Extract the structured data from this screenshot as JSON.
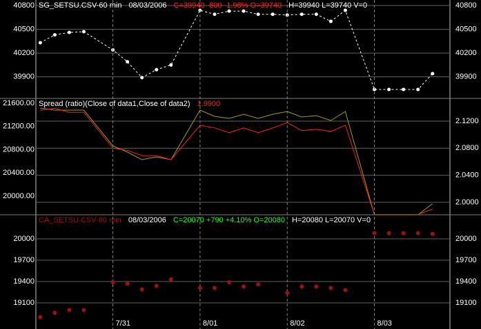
{
  "chart_data": [
    {
      "type": "line",
      "line_style": "dashed",
      "markers": true,
      "header": [
        {
          "text": "SG_SETSU.CSV-60 min",
          "color": "#ffffff"
        },
        {
          "text": "08/03/2006",
          "color": "#ffffff"
        },
        {
          "text": "C=39940  -800  -1.96%  O=39740",
          "color": "#ff2020"
        },
        {
          "text": "H=39940  L=39740  V=0",
          "color": "#ffffff"
        }
      ],
      "x": [
        0,
        1,
        2,
        3,
        5,
        6,
        7,
        8,
        9,
        11,
        12,
        13,
        14,
        15,
        16,
        17,
        18,
        19,
        20,
        21,
        23,
        24,
        25,
        26,
        27
      ],
      "xlim": [
        -0.3,
        28.2
      ],
      "series": [
        {
          "color": "#ffffff",
          "values": [
            40330,
            40430,
            40460,
            40470,
            40240,
            40090,
            39890,
            39990,
            40050,
            40740,
            40690,
            40730,
            40730,
            40690,
            40690,
            40680,
            40690,
            40690,
            40600,
            40740,
            39740,
            39740,
            39740,
            39740,
            39940
          ]
        }
      ],
      "ylim": [
        39627,
        40870
      ],
      "yticks": [
        39900,
        40200,
        40500,
        40800
      ],
      "grid": true
    },
    {
      "type": "line",
      "header": [
        {
          "text": "Spread (ratio)(Close of data1,Close of data2)",
          "color": "#ffffff"
        },
        {
          "text": "1.9900",
          "color": "#ff2020"
        }
      ],
      "x": [
        0,
        1,
        2,
        3,
        5,
        6,
        7,
        8,
        9,
        11,
        12,
        13,
        14,
        15,
        16,
        17,
        18,
        19,
        20,
        21,
        23,
        24,
        25,
        26,
        27
      ],
      "xlim": [
        -0.3,
        28.2
      ],
      "series": [
        {
          "color": "#a0a000",
          "values": [
            21517,
            21481,
            21481,
            21481,
            20865,
            20759,
            20628,
            20676,
            20628,
            21481,
            21375,
            21339,
            21410,
            21339,
            21410,
            21458,
            21363,
            21387,
            21304,
            21458,
            19680,
            19680,
            19680,
            19680,
            19870
          ]
        },
        {
          "color": "#ff2020",
          "axis": "y2",
          "values": [
            2.136,
            2.139,
            2.133,
            2.133,
            2.08,
            2.077,
            2.069,
            2.069,
            2.063,
            2.114,
            2.11,
            2.103,
            2.11,
            2.103,
            2.11,
            2.118,
            2.106,
            2.108,
            2.105,
            2.114,
            1.982,
            1.982,
            1.982,
            1.982,
            1.99
          ]
        }
      ],
      "ylim": [
        19680,
        21683
      ],
      "yticks": [
        {
          "value": 20000,
          "label": "20000.00"
        },
        {
          "value": 20400,
          "label": "20400.00"
        },
        {
          "value": 20800,
          "label": "20800.00"
        },
        {
          "value": 21200,
          "label": "21200.00"
        },
        {
          "value": 21600,
          "label": "21600.00"
        }
      ],
      "y2lim": [
        1.9816,
        2.1536
      ],
      "y2ticks": [
        {
          "value": 2.0,
          "label": "2.0000"
        },
        {
          "value": 2.04,
          "label": "2.0400"
        },
        {
          "value": 2.08,
          "label": "2.0800"
        },
        {
          "value": 2.12,
          "label": "2.1200"
        }
      ],
      "grid": true
    },
    {
      "type": "scatter",
      "header": [
        {
          "text": "CA_SETSU.CSV-60 min",
          "color": "#a01010"
        },
        {
          "text": "08/03/2006",
          "color": "#ffffff"
        },
        {
          "text": "C=20070  +790  +4.10%  O=20080",
          "color": "#20ff20"
        },
        {
          "text": "H=20080  L=20070  V=0",
          "color": "#ffffff"
        }
      ],
      "x": [
        0,
        1,
        2,
        3,
        5,
        6,
        7,
        8,
        9,
        11,
        12,
        13,
        14,
        15,
        16,
        17,
        18,
        19,
        20,
        21,
        23,
        24,
        25,
        26,
        27
      ],
      "xlim": [
        -0.3,
        28.2
      ],
      "series": [
        {
          "color": "#a01010",
          "values": [
            18900,
            18960,
            19000,
            19000,
            19390,
            19370,
            19290,
            19340,
            19430,
            19310,
            19310,
            19390,
            19330,
            19360,
            null,
            19240,
            19330,
            19330,
            19310,
            19280,
            20080,
            20080,
            20080,
            20080,
            20070
          ]
        }
      ],
      "ylim": [
        18732,
        20339
      ],
      "yticks": [
        19100,
        19400,
        19700,
        20000
      ],
      "grid": true,
      "xticks": [
        {
          "value": 5,
          "label": "7/31"
        },
        {
          "value": 11,
          "label": "8/01"
        },
        {
          "value": 17,
          "label": "8/02"
        },
        {
          "value": 23,
          "label": "8/03"
        }
      ]
    }
  ]
}
